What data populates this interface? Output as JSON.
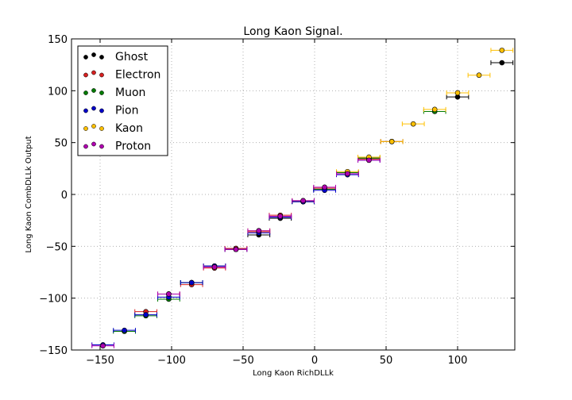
{
  "chart_data": {
    "type": "scatter",
    "title": "Long Kaon Signal.",
    "xlabel": "Long Kaon RichDLLk",
    "ylabel": "Long Kaon CombDLLk Output",
    "xlim": [
      -170,
      140
    ],
    "ylim": [
      -150,
      150
    ],
    "x_ticks": [
      -150,
      -100,
      -50,
      0,
      50,
      100
    ],
    "y_ticks": [
      -150,
      -100,
      -50,
      0,
      50,
      100,
      150
    ],
    "x_tick_labels": [
      "−150",
      "−100",
      "−50",
      "0",
      "50",
      "100"
    ],
    "y_tick_labels": [
      "−150",
      "−100",
      "−50",
      "0",
      "50",
      "100",
      "150"
    ],
    "grid": true,
    "legend_position": "top-left",
    "series": [
      {
        "name": "Ghost",
        "color": "#000000",
        "points": [
          [
            -102,
            -96
          ],
          [
            -86,
            -85
          ],
          [
            -70,
            -69
          ],
          [
            -55,
            -53
          ],
          [
            -39,
            -39
          ],
          [
            -24,
            -23
          ],
          [
            -8,
            -7
          ],
          [
            23,
            21
          ],
          [
            38,
            35
          ],
          [
            54,
            51
          ],
          [
            100,
            94
          ],
          [
            131,
            127
          ]
        ]
      },
      {
        "name": "Electron",
        "color": "#d62020",
        "points": [
          [
            -118,
            -113
          ],
          [
            -102,
            -96
          ],
          [
            -86,
            -87
          ],
          [
            -70,
            -71
          ],
          [
            -55,
            -52
          ],
          [
            -39,
            -36
          ],
          [
            -24,
            -20
          ],
          [
            -8,
            -6
          ],
          [
            7,
            6
          ],
          [
            23,
            21
          ],
          [
            38,
            34
          ],
          [
            54,
            51
          ]
        ]
      },
      {
        "name": "Muon",
        "color": "#007a00",
        "points": [
          [
            -133,
            -132
          ],
          [
            -118,
            -117
          ],
          [
            -102,
            -101
          ],
          [
            -86,
            -85
          ],
          [
            -8,
            -7
          ],
          [
            7,
            5
          ],
          [
            23,
            21
          ],
          [
            38,
            35
          ],
          [
            84,
            80
          ]
        ]
      },
      {
        "name": "Pion",
        "color": "#0000c8",
        "points": [
          [
            -148,
            -145
          ],
          [
            -133,
            -131
          ],
          [
            -118,
            -116
          ],
          [
            -102,
            -99
          ],
          [
            -86,
            -85
          ],
          [
            -70,
            -69
          ],
          [
            -55,
            -53
          ],
          [
            -39,
            -37
          ],
          [
            -24,
            -22
          ],
          [
            -8,
            -7
          ],
          [
            7,
            4
          ],
          [
            23,
            19
          ],
          [
            38,
            33
          ]
        ]
      },
      {
        "name": "Kaon",
        "color": "#ffc000",
        "points": [
          [
            -39,
            -35
          ],
          [
            23,
            22
          ],
          [
            38,
            36
          ],
          [
            54,
            51
          ],
          [
            69,
            68
          ],
          [
            84,
            82
          ],
          [
            100,
            98
          ],
          [
            115,
            115
          ],
          [
            131,
            139
          ]
        ]
      },
      {
        "name": "Proton",
        "color": "#b000b0",
        "points": [
          [
            -148,
            -146
          ],
          [
            -102,
            -96
          ],
          [
            -70,
            -70
          ],
          [
            -55,
            -53
          ],
          [
            -39,
            -35
          ],
          [
            -24,
            -21
          ],
          [
            -8,
            -6
          ],
          [
            7,
            7
          ],
          [
            23,
            20
          ],
          [
            38,
            33
          ]
        ]
      }
    ],
    "x_error_half_width": 7.7
  }
}
